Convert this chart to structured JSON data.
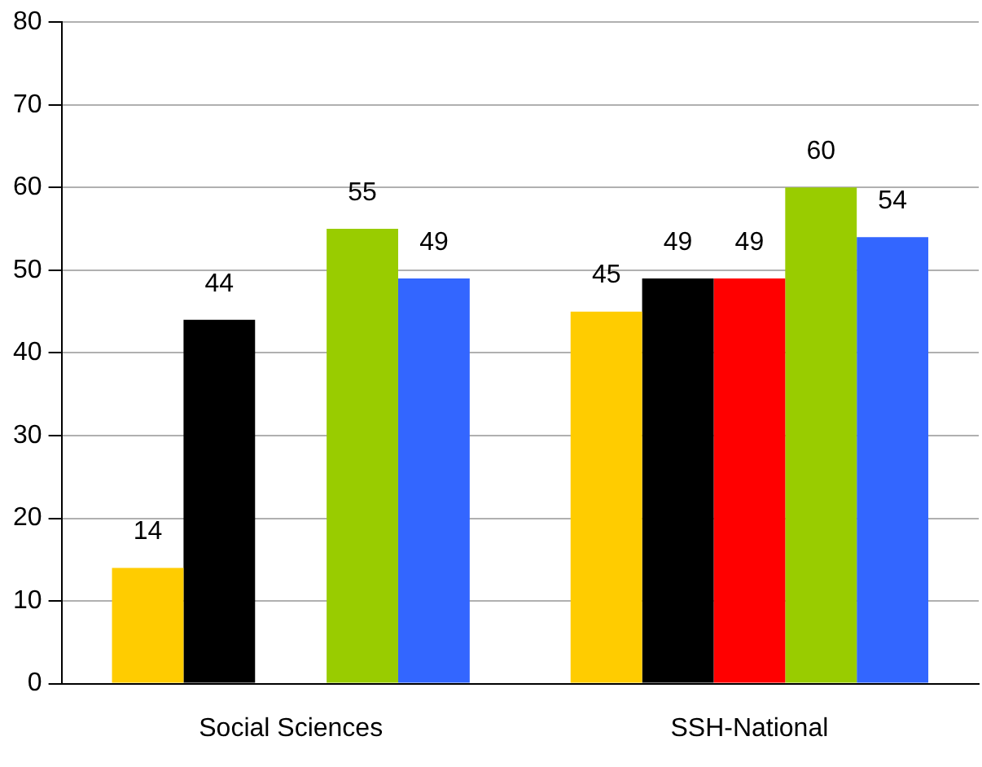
{
  "chart_data": {
    "type": "bar",
    "categories": [
      "Social Sciences",
      "SSH-National"
    ],
    "series": [
      {
        "color": "#ffcc00",
        "values": [
          14,
          45
        ]
      },
      {
        "color": "#000000",
        "values": [
          44,
          49
        ]
      },
      {
        "color": "#ff0000",
        "values": [
          null,
          49
        ]
      },
      {
        "color": "#99cc00",
        "values": [
          55,
          60
        ]
      },
      {
        "color": "#3366ff",
        "values": [
          49,
          54
        ]
      }
    ],
    "ylim": [
      0,
      80
    ],
    "yticks": [
      0,
      10,
      20,
      30,
      40,
      50,
      60,
      70,
      80
    ],
    "grid": "y",
    "legend": false,
    "data_labels": true
  }
}
